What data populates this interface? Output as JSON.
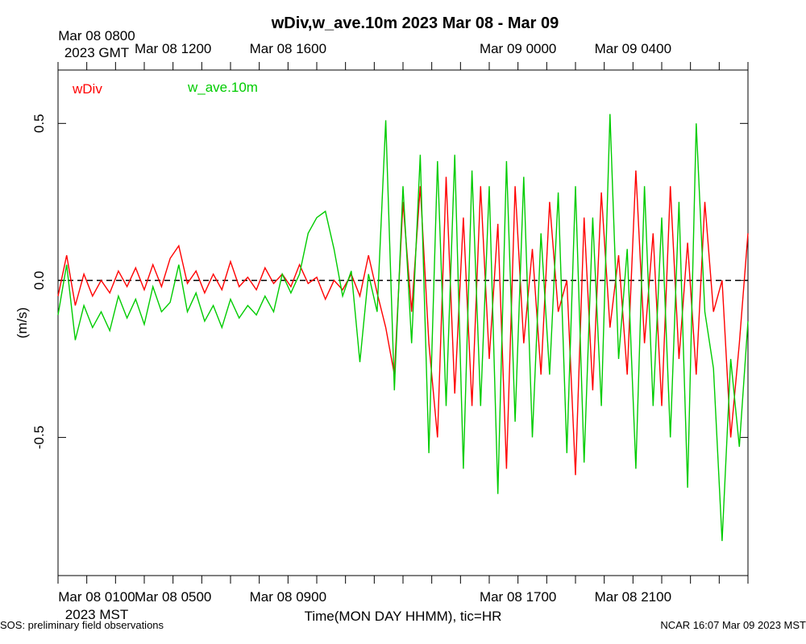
{
  "chart_data": {
    "type": "line",
    "title": "wDiv,w_ave.10m 2023 Mar 08 - Mar 09",
    "ylabel": "(m/s)",
    "xlabel": "Time(MON DAY HHMM), tic=HR",
    "ylim": [
      -0.94,
      0.67
    ],
    "xlim_hours_local": [
      0,
      24
    ],
    "grid": false,
    "legend_placement": "top-left",
    "zero_line": {
      "y": 0,
      "style": "dashed"
    },
    "y_ticks": [
      0.5,
      0.0,
      -0.5
    ],
    "y_tick_labels": [
      "0.5",
      "0.0",
      "-0.5"
    ],
    "top_axis": {
      "first_label_lines": [
        "Mar 08 0800",
        "2023 GMT"
      ],
      "labels": [
        {
          "hour": 4,
          "text": "Mar 08 1200"
        },
        {
          "hour": 8,
          "text": "Mar 08 1600"
        },
        {
          "hour": 16,
          "text": "Mar 09 0000"
        },
        {
          "hour": 20,
          "text": "Mar 09 0400"
        }
      ]
    },
    "bottom_axis": {
      "first_label_lines": [
        "Mar 08 0100",
        "2023 MST"
      ],
      "labels": [
        {
          "hour": 4,
          "text": "Mar 08 0500"
        },
        {
          "hour": 8,
          "text": "Mar 08 0900"
        },
        {
          "hour": 16,
          "text": "Mar 08 1700"
        },
        {
          "hour": 20,
          "text": "Mar 08 2100"
        }
      ]
    },
    "series": [
      {
        "name": "wDiv",
        "color": "#ff0000",
        "x_hours": [
          0.0,
          0.3,
          0.6,
          0.9,
          1.2,
          1.5,
          1.8,
          2.1,
          2.4,
          2.7,
          3.0,
          3.3,
          3.6,
          3.9,
          4.2,
          4.5,
          4.8,
          5.1,
          5.4,
          5.7,
          6.0,
          6.3,
          6.6,
          6.9,
          7.2,
          7.5,
          7.8,
          8.1,
          8.4,
          8.7,
          9.0,
          9.3,
          9.6,
          9.9,
          10.2,
          10.5,
          10.8,
          11.1,
          11.4,
          11.7,
          12.0,
          12.3,
          12.6,
          12.9,
          13.2,
          13.5,
          13.8,
          14.1,
          14.4,
          14.7,
          15.0,
          15.3,
          15.6,
          15.9,
          16.2,
          16.5,
          16.8,
          17.1,
          17.4,
          17.7,
          18.0,
          18.3,
          18.6,
          18.9,
          19.2,
          19.5,
          19.8,
          20.1,
          20.4,
          20.7,
          21.0,
          21.3,
          21.6,
          21.9,
          22.2,
          22.5,
          22.8,
          23.1,
          23.4,
          23.7,
          24.0
        ],
        "values": [
          -0.05,
          0.08,
          -0.08,
          0.02,
          -0.05,
          0.0,
          -0.04,
          0.03,
          -0.02,
          0.04,
          -0.03,
          0.05,
          -0.02,
          0.07,
          0.11,
          -0.01,
          0.03,
          -0.04,
          0.02,
          -0.03,
          0.06,
          -0.02,
          0.01,
          -0.03,
          0.04,
          -0.01,
          0.02,
          -0.02,
          0.05,
          -0.01,
          0.01,
          -0.06,
          0.0,
          -0.03,
          0.02,
          -0.05,
          0.08,
          -0.04,
          -0.15,
          -0.3,
          0.25,
          -0.1,
          0.3,
          -0.2,
          -0.5,
          0.33,
          -0.36,
          0.2,
          -0.4,
          0.3,
          -0.25,
          0.18,
          -0.6,
          0.3,
          -0.2,
          0.1,
          -0.3,
          0.25,
          -0.1,
          0.0,
          -0.62,
          0.2,
          -0.35,
          0.28,
          -0.15,
          0.08,
          -0.3,
          0.35,
          -0.2,
          0.15,
          -0.4,
          0.3,
          -0.25,
          0.12,
          -0.3,
          0.25,
          -0.1,
          0.0,
          -0.5,
          -0.2,
          0.15
        ]
      },
      {
        "name": "w_ave.10m",
        "color": "#00cc00",
        "x_hours": [
          0.0,
          0.3,
          0.6,
          0.9,
          1.2,
          1.5,
          1.8,
          2.1,
          2.4,
          2.7,
          3.0,
          3.3,
          3.6,
          3.9,
          4.2,
          4.5,
          4.8,
          5.1,
          5.4,
          5.7,
          6.0,
          6.3,
          6.6,
          6.9,
          7.2,
          7.5,
          7.8,
          8.1,
          8.4,
          8.7,
          9.0,
          9.3,
          9.6,
          9.9,
          10.2,
          10.5,
          10.8,
          11.1,
          11.4,
          11.7,
          12.0,
          12.3,
          12.6,
          12.9,
          13.2,
          13.5,
          13.8,
          14.1,
          14.4,
          14.7,
          15.0,
          15.3,
          15.6,
          15.9,
          16.2,
          16.5,
          16.8,
          17.1,
          17.4,
          17.7,
          18.0,
          18.3,
          18.6,
          18.9,
          19.2,
          19.5,
          19.8,
          20.1,
          20.4,
          20.7,
          21.0,
          21.3,
          21.6,
          21.9,
          22.2,
          22.5,
          22.8,
          23.1,
          23.4,
          23.7,
          24.0
        ],
        "values": [
          -0.11,
          0.05,
          -0.19,
          -0.08,
          -0.15,
          -0.1,
          -0.16,
          -0.05,
          -0.12,
          -0.06,
          -0.14,
          -0.02,
          -0.1,
          -0.07,
          0.05,
          -0.1,
          -0.04,
          -0.13,
          -0.08,
          -0.15,
          -0.06,
          -0.12,
          -0.08,
          -0.11,
          -0.05,
          -0.1,
          0.02,
          -0.04,
          0.02,
          0.15,
          0.2,
          0.22,
          0.1,
          -0.05,
          0.03,
          -0.26,
          0.02,
          -0.1,
          0.51,
          -0.35,
          0.3,
          -0.2,
          0.4,
          -0.55,
          0.38,
          -0.4,
          0.4,
          -0.6,
          0.35,
          -0.4,
          0.3,
          -0.68,
          0.38,
          -0.45,
          0.33,
          -0.5,
          0.15,
          -0.3,
          0.28,
          -0.55,
          0.3,
          -0.58,
          0.2,
          -0.4,
          0.53,
          -0.25,
          0.1,
          -0.6,
          0.3,
          -0.4,
          0.2,
          -0.5,
          0.25,
          -0.66,
          0.5,
          -0.1,
          -0.28,
          -0.83,
          -0.25,
          -0.53,
          -0.13
        ]
      }
    ]
  },
  "footer": {
    "left": "SOS: preliminary field observations",
    "right": "NCAR 16:07 Mar 09 2023 MST"
  }
}
